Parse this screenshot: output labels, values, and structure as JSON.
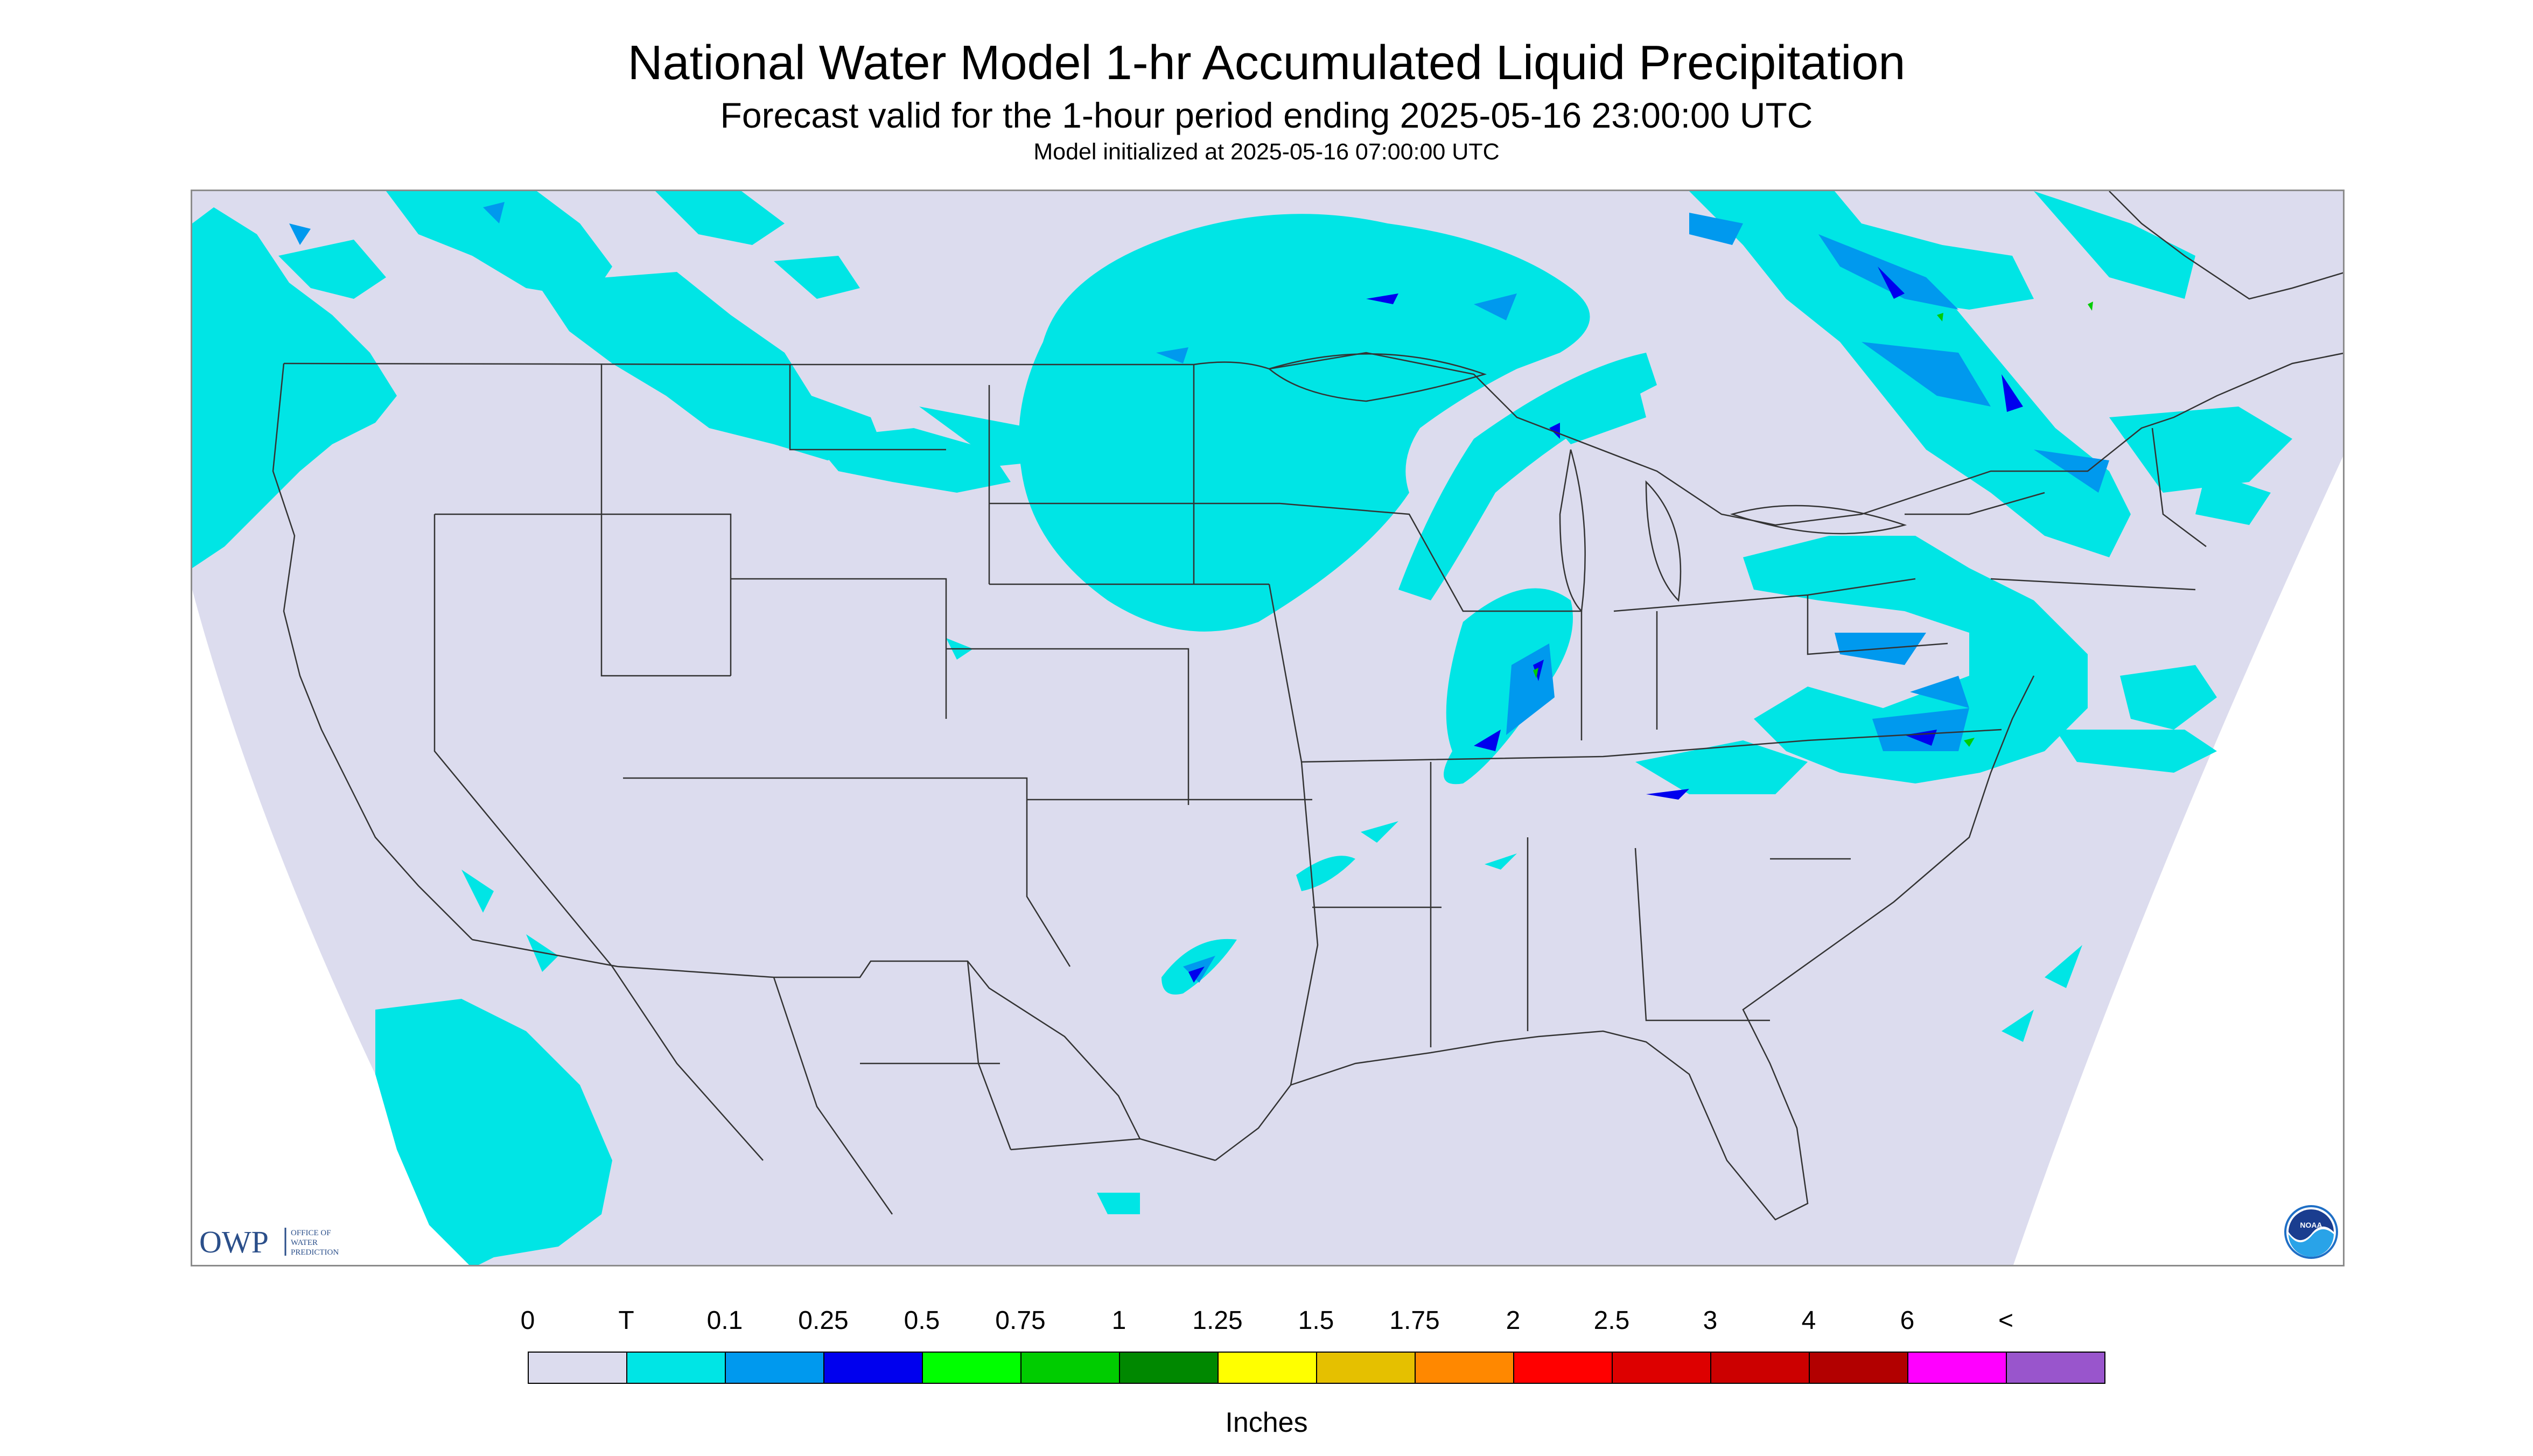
{
  "header": {
    "title": "National Water Model 1-hr Accumulated Liquid Precipitation",
    "subtitle": "Forecast valid for the 1-hour period ending 2025-05-16 23:00:00 UTC",
    "init": "Model initialized at 2025-05-16 07:00:00 UTC"
  },
  "logos": {
    "owp_mark": "OWP",
    "owp_text": [
      "OFFICE OF",
      "WATER",
      "PREDICTION"
    ],
    "noaa_text": "NOAA"
  },
  "legend": {
    "labels": [
      "0",
      "T",
      "0.1",
      "0.25",
      "0.5",
      "0.75",
      "1",
      "1.25",
      "1.5",
      "1.75",
      "2",
      "2.5",
      "3",
      "4",
      "6",
      "<"
    ],
    "colors": [
      "#dcdcee",
      "#00e5e5",
      "#0099ee",
      "#0000ee",
      "#00ff00",
      "#00cc00",
      "#008800",
      "#ffff00",
      "#e5c000",
      "#ff8800",
      "#ff0000",
      "#dd0000",
      "#cc0000",
      "#b20000",
      "#ff00ff",
      "#9955cc"
    ],
    "units": "Inches"
  },
  "map": {
    "background": "#dcdcee",
    "outside": "#ffffff",
    "precip_trace": "#00e5e5",
    "precip_light": "#0099ee",
    "precip_med": "#0000ee",
    "precip_green": "#00cc00",
    "boundary_color": "#333333"
  }
}
